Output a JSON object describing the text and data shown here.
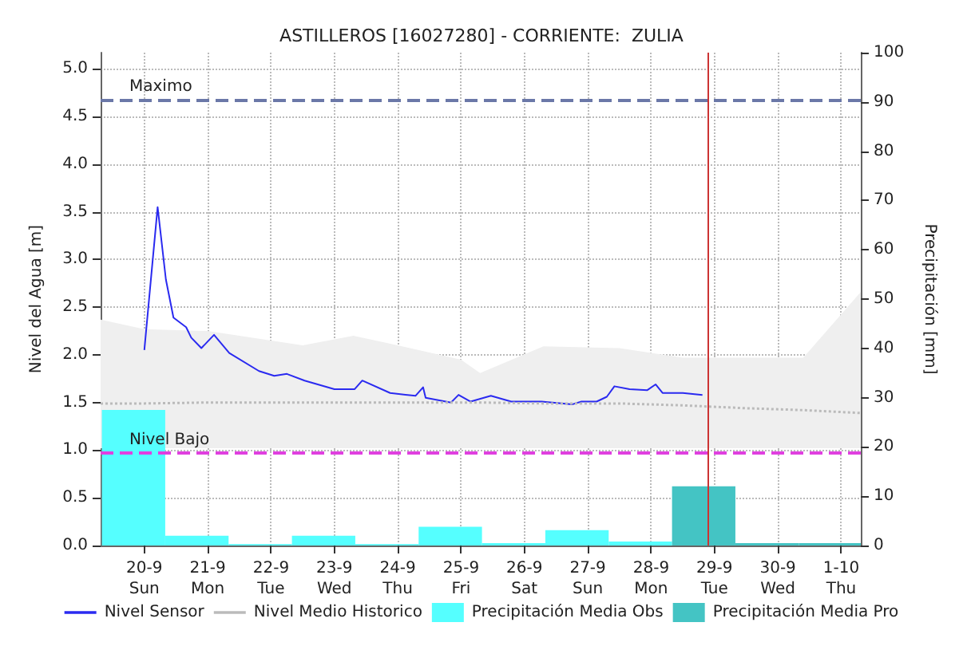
{
  "chart_data": {
    "type": "line",
    "title": "ASTILLEROS [16027280] - CORRIENTE:  ZULIA",
    "ylabel": "Nivel del Agua [m]",
    "y2label": "Precipitación [mm]",
    "xlim": [
      "--09-19T07:26",
      "--10-01T07:26"
    ],
    "xticks": [
      {
        "value": "--09-20",
        "label": "20-9\nSun"
      },
      {
        "value": "--09-21",
        "label": "21-9\nMon"
      },
      {
        "value": "--09-22",
        "label": "22-9\nTue"
      },
      {
        "value": "--09-23",
        "label": "23-9\nWed"
      },
      {
        "value": "--09-24",
        "label": "24-9\nThu"
      },
      {
        "value": "--09-25",
        "label": "25-9\nFri"
      },
      {
        "value": "--09-26",
        "label": "26-9\nSat"
      },
      {
        "value": "--09-27",
        "label": "27-9\nSun"
      },
      {
        "value": "--09-28",
        "label": "28-9\nMon"
      },
      {
        "value": "--09-29",
        "label": "29-9\nTue"
      },
      {
        "value": "--09-30",
        "label": "30-9\nWed"
      },
      {
        "value": "--10-01",
        "label": "1-10\nThu"
      }
    ],
    "ylim": [
      0,
      5.17
    ],
    "yticks": [
      {
        "value": 0,
        "label": "0.0"
      },
      {
        "value": 0.5,
        "label": "0.5"
      },
      {
        "value": 1,
        "label": "1.0"
      },
      {
        "value": 1.5,
        "label": "1.5"
      },
      {
        "value": 2,
        "label": "2.0"
      },
      {
        "value": 2.5,
        "label": "2.5"
      },
      {
        "value": 3,
        "label": "3.0"
      },
      {
        "value": 3.5,
        "label": "3.5"
      },
      {
        "value": 4,
        "label": "4.0"
      },
      {
        "value": 4.5,
        "label": "4.5"
      },
      {
        "value": 5,
        "label": "5.0"
      }
    ],
    "y2lim": [
      0,
      100
    ],
    "y2ticks": [
      0,
      10,
      20,
      30,
      40,
      50,
      60,
      70,
      80,
      90,
      100
    ],
    "grid": true,
    "legend": "bottom",
    "marker": "none",
    "series": [
      {
        "name": "Nivel Sensor",
        "line_style": "solid",
        "color": "#2a2af0",
        "x": [
          "--09-20T00:00",
          "--09-20T05:02",
          "--09-20T08:10",
          "--09-20T11:02",
          "--09-20T15:50",
          "--09-20T17:46",
          "--09-20T21:36",
          "--09-21T02:24",
          "--09-21T08:10",
          "--09-21T19:26",
          "--09-22T01:12",
          "--09-22T06:00",
          "--09-22T12:43",
          "--09-23T00:00",
          "--09-23T07:41",
          "--09-23T10:34",
          "--09-23T21:07",
          "--09-24T06:43",
          "--09-24T09:36",
          "--09-24T10:34",
          "--09-24T20:10",
          "--09-24T23:02",
          "--09-25T03:36",
          "--09-25T11:17",
          "--09-25T18:58",
          "--09-26T06:29",
          "--09-26T18:00",
          "--09-26T21:36",
          "--09-27T03:22",
          "--09-27T07:12",
          "--09-27T10:05",
          "--09-27T15:50",
          "--09-27T22:34",
          "--09-28T01:41",
          "--09-28T04:19",
          "--09-28T12:00",
          "--09-28T19:26"
        ],
        "values": [
          2.05,
          3.55,
          2.79,
          2.39,
          2.29,
          2.18,
          2.07,
          2.21,
          2.02,
          1.83,
          1.78,
          1.8,
          1.73,
          1.64,
          1.64,
          1.73,
          1.6,
          1.57,
          1.66,
          1.55,
          1.5,
          1.58,
          1.51,
          1.57,
          1.51,
          1.51,
          1.48,
          1.51,
          1.51,
          1.56,
          1.67,
          1.64,
          1.63,
          1.69,
          1.6,
          1.6,
          1.58
        ]
      },
      {
        "name": "Nivel Medio Historico",
        "line_style": "dotted",
        "color": "#bbbbbb",
        "x": [
          "--09-19T07:26",
          "--09-20T00:00",
          "--09-21T00:00",
          "--09-22T00:00",
          "--09-22T12:00",
          "--09-23T07:12",
          "--09-24T00:00",
          "--09-25T00:00",
          "--09-25T07:12",
          "--09-26T07:12",
          "--09-27T12:00",
          "--09-28T12:00",
          "--09-29T12:00",
          "--09-30T09:36",
          "--10-01T07:26"
        ],
        "values": [
          1.49,
          1.49,
          1.5,
          1.5,
          1.5,
          1.5,
          1.5,
          1.5,
          1.5,
          1.49,
          1.49,
          1.47,
          1.44,
          1.42,
          1.39
        ],
        "lower": [
          1.02,
          1.02,
          1.02,
          1.02,
          1.02,
          1.02,
          1.02,
          1.02,
          1.02,
          1.02,
          1.02,
          1.02,
          1.02,
          1.02,
          1.02
        ],
        "upper": [
          2.37,
          2.27,
          2.25,
          2.15,
          2.1,
          2.2,
          2.1,
          1.95,
          1.81,
          2.09,
          2.07,
          1.97,
          1.97,
          1.97,
          2.66
        ]
      },
      {
        "name": "Precipitación Media Obs",
        "type": "bar",
        "axis": "y2",
        "color": "#55ffff",
        "x": [
          "--09-19T19:55",
          "--09-20T19:55",
          "--09-21T19:55",
          "--09-22T19:55",
          "--09-23T19:55",
          "--09-24T19:55",
          "--09-25T19:55",
          "--09-26T19:55",
          "--09-27T19:55"
        ],
        "values": [
          27.5,
          2,
          0.3,
          2,
          0.3,
          3.8,
          0.5,
          3.1,
          0.8
        ]
      },
      {
        "name": "Precipitación Media Pro",
        "type": "bar",
        "axis": "y2",
        "color": "#44c4c4",
        "x": [
          "--09-28T19:55",
          "--09-29T19:55",
          "--09-30T19:55"
        ],
        "values": [
          12,
          0.5,
          0.5
        ]
      }
    ],
    "ref_lines": [
      {
        "axis": "y",
        "value": 4.68,
        "label": "Maximo",
        "color": "#6b78a8",
        "line_style": "dashed"
      },
      {
        "axis": "y",
        "value": 0.97,
        "label": "Nivel Bajo",
        "color": "#e040e0",
        "line_style": "dashed"
      },
      {
        "axis": "x",
        "value": "--09-28T21:36",
        "color": "#cc3333",
        "line_style": "solid"
      }
    ]
  }
}
